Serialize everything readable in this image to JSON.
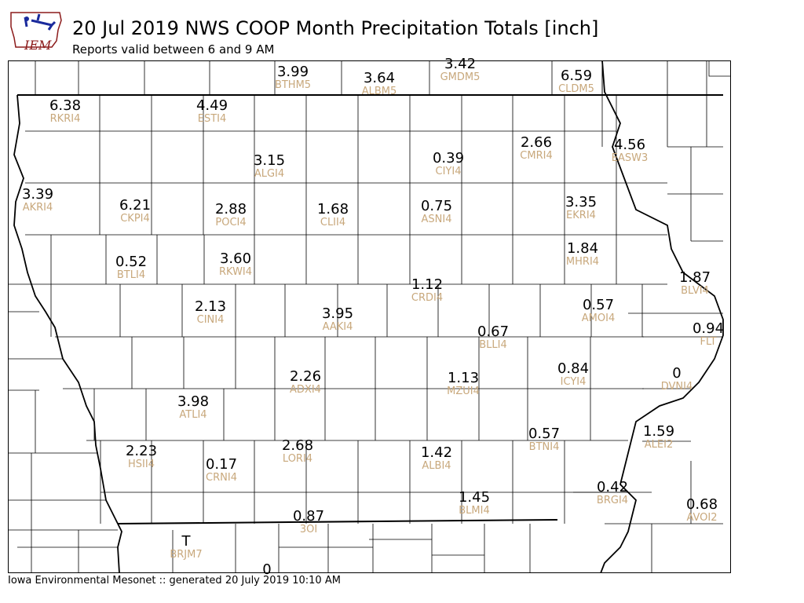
{
  "header": {
    "title": "20 Jul 2019 NWS COOP Month Precipitation Totals [inch]",
    "subtitle": "Reports valid between 6 and 9 AM",
    "logo_text": "IEM"
  },
  "footer": {
    "text": "Iowa Environmental Mesonet :: generated 20 July 2019 10:10 AM"
  },
  "colors": {
    "value_text": "#000000",
    "station_id_text": "#c8a87c",
    "county_lines": "#000000",
    "logo_blue": "#1a2a9c",
    "logo_red": "#8b1a1a"
  },
  "stations": [
    {
      "id": "BTHM5",
      "value": "3.99"
    },
    {
      "id": "ALBM5",
      "value": "3.64"
    },
    {
      "id": "GMDM5",
      "value": "3.42"
    },
    {
      "id": "CLDM5",
      "value": "6.59"
    },
    {
      "id": "RKRI4",
      "value": "6.38"
    },
    {
      "id": "ESTI4",
      "value": "4.49"
    },
    {
      "id": "ALGI4",
      "value": "3.15"
    },
    {
      "id": "CIYI4",
      "value": "0.39"
    },
    {
      "id": "CMRI4",
      "value": "2.66"
    },
    {
      "id": "EASW3",
      "value": "4.56"
    },
    {
      "id": "AKRI4",
      "value": "3.39"
    },
    {
      "id": "CKPI4",
      "value": "6.21"
    },
    {
      "id": "POCI4",
      "value": "2.88"
    },
    {
      "id": "CLII4",
      "value": "1.68"
    },
    {
      "id": "ASNI4",
      "value": "0.75"
    },
    {
      "id": "EKRI4",
      "value": "3.35"
    },
    {
      "id": "BTLI4",
      "value": "0.52"
    },
    {
      "id": "RKWI4",
      "value": "3.60"
    },
    {
      "id": "MHRI4",
      "value": "1.84"
    },
    {
      "id": "CRDI4",
      "value": "1.12"
    },
    {
      "id": "BLVI4",
      "value": "1.87"
    },
    {
      "id": "CINI4",
      "value": "2.13"
    },
    {
      "id": "AAKI4",
      "value": "3.95"
    },
    {
      "id": "AMOI4",
      "value": "0.57"
    },
    {
      "id": "BLLI4",
      "value": "0.67"
    },
    {
      "id": "FLT",
      "value": "0.94"
    },
    {
      "id": "ADXI4",
      "value": "2.26"
    },
    {
      "id": "MZUI4",
      "value": "1.13"
    },
    {
      "id": "ICYI4",
      "value": "0.84"
    },
    {
      "id": "DVNI4",
      "value": "0"
    },
    {
      "id": "ATLI4",
      "value": "3.98"
    },
    {
      "id": "BTNI4",
      "value": "0.57"
    },
    {
      "id": "ALEI2",
      "value": "1.59"
    },
    {
      "id": "HSII4",
      "value": "2.23"
    },
    {
      "id": "CRNI4",
      "value": "0.17"
    },
    {
      "id": "LORI4",
      "value": "2.68"
    },
    {
      "id": "ALBI4",
      "value": "1.42"
    },
    {
      "id": "BLMI4",
      "value": "1.45"
    },
    {
      "id": "BRGI4",
      "value": "0.42"
    },
    {
      "id": "AVOI2",
      "value": "0.68"
    },
    {
      "id": "3OI",
      "value": "0.87"
    },
    {
      "id": "BRJM7",
      "value": "T"
    },
    {
      "id": "",
      "value": "0"
    }
  ]
}
